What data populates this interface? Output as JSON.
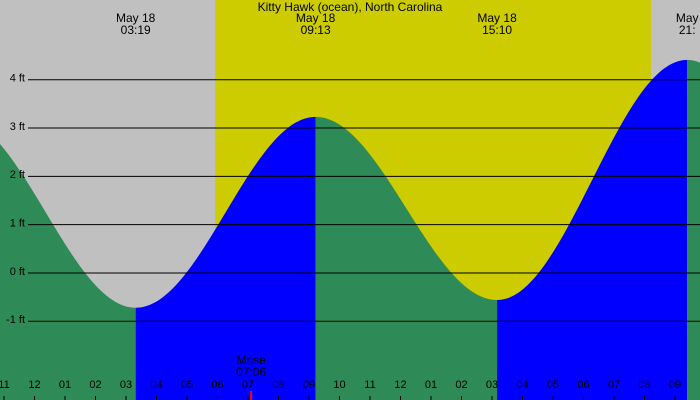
{
  "chart_data": {
    "type": "tide",
    "title": "Kitty Hawk (ocean), North Carolina",
    "x": [
      3.317,
      9.217,
      15.167,
      21.4
    ],
    "values": [
      -0.72,
      3.23,
      -0.56,
      4.41
    ],
    "extreme_dates": [
      "May 18",
      "May 18",
      "May 18",
      "May"
    ],
    "extreme_times": [
      "03:19",
      "09:13",
      "15:10",
      "21:"
    ],
    "xlim": [
      -1.131,
      21.82
    ],
    "ylim": [
      -2.63,
      5.65
    ],
    "yticks": [
      {
        "value": 4,
        "label": "4 ft"
      },
      {
        "value": 3,
        "label": "3 ft"
      },
      {
        "value": 2,
        "label": "2 ft"
      },
      {
        "value": 1,
        "label": "1 ft"
      },
      {
        "value": 0,
        "label": "0 ft"
      },
      {
        "value": -1,
        "label": "-1 ft"
      }
    ],
    "xticks": [
      {
        "value": -1,
        "label": "11"
      },
      {
        "value": 0,
        "label": "12"
      },
      {
        "value": 1,
        "label": "01"
      },
      {
        "value": 2,
        "label": "02"
      },
      {
        "value": 3,
        "label": "03"
      },
      {
        "value": 4,
        "label": "04"
      },
      {
        "value": 5,
        "label": "05"
      },
      {
        "value": 6,
        "label": "06"
      },
      {
        "value": 7,
        "label": "07"
      },
      {
        "value": 8,
        "label": "08"
      },
      {
        "value": 9,
        "label": "09"
      },
      {
        "value": 10,
        "label": "10"
      },
      {
        "value": 11,
        "label": "11"
      },
      {
        "value": 12,
        "label": "12"
      },
      {
        "value": 13,
        "label": "01"
      },
      {
        "value": 14,
        "label": "02"
      },
      {
        "value": 15,
        "label": "03"
      },
      {
        "value": 16,
        "label": "04"
      },
      {
        "value": 17,
        "label": "05"
      },
      {
        "value": 18,
        "label": "06"
      },
      {
        "value": 19,
        "label": "07"
      },
      {
        "value": 20,
        "label": "08"
      },
      {
        "value": 21,
        "label": "09"
      }
    ],
    "daylight": [
      5.92,
      20.21
    ],
    "moonrise": {
      "x": 7.1,
      "label": "Mrise",
      "time": "07:06"
    },
    "colors": {
      "night": "#c0c0c0",
      "day": "#cccc00",
      "falling": "#2e8b57",
      "rising": "#0000ff",
      "moonrise": "#ff0000"
    }
  }
}
